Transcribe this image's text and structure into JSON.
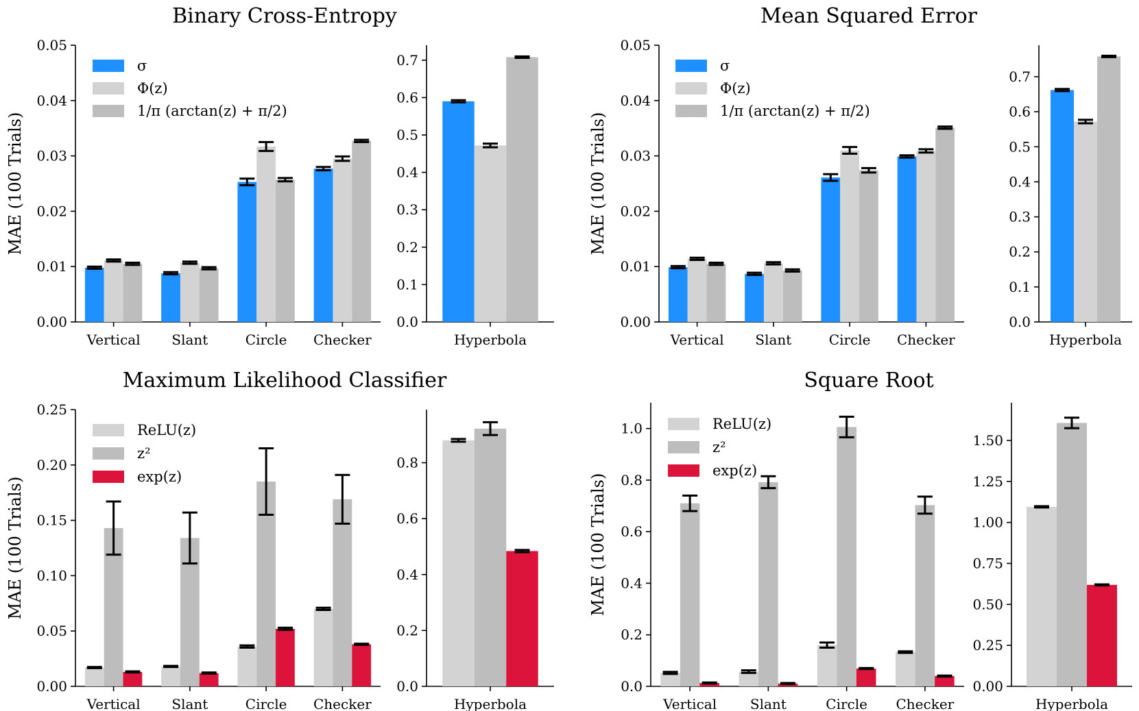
{
  "colors": {
    "sigma": "#1e90ff",
    "phi": "#d3d3d3",
    "arctan": "#bdbdbd",
    "relu": "#d3d3d3",
    "square": "#bdbdbd",
    "exp": "#dc143c"
  },
  "chart_data": [
    {
      "type": "bar",
      "title": "Binary Cross-Entropy",
      "ylabel": "MAE (100 Trials)",
      "left": {
        "categories": [
          "Vertical",
          "Slant",
          "Circle",
          "Checker"
        ],
        "ylim": [
          0,
          0.05
        ],
        "yticks": [
          "0.00",
          "0.01",
          "0.02",
          "0.03",
          "0.04",
          "0.05"
        ],
        "series": [
          {
            "name": "σ",
            "color_key": "sigma",
            "values": [
              0.0098,
              0.0088,
              0.0253,
              0.0277
            ],
            "errors": [
              0.0002,
              0.0002,
              0.0006,
              0.0003
            ]
          },
          {
            "name": "Φ(z)",
            "color_key": "phi",
            "values": [
              0.0111,
              0.0107,
              0.0317,
              0.0295
            ],
            "errors": [
              0.0002,
              0.0002,
              0.0008,
              0.0004
            ]
          },
          {
            "name": "1/π (arctan(z) + π/2)",
            "color_key": "arctan",
            "values": [
              0.0105,
              0.0097,
              0.0257,
              0.0327
            ],
            "errors": [
              0.0002,
              0.0002,
              0.0003,
              0.0002
            ]
          }
        ]
      },
      "right": {
        "categories": [
          "Hyperbola"
        ],
        "ylim": [
          0,
          0.74
        ],
        "yticks": [
          "0.0",
          "0.1",
          "0.2",
          "0.3",
          "0.4",
          "0.5",
          "0.6",
          "0.7"
        ],
        "series": [
          {
            "name": "σ",
            "color_key": "sigma",
            "values": [
              0.59
            ],
            "errors": [
              0.003
            ]
          },
          {
            "name": "Φ(z)",
            "color_key": "phi",
            "values": [
              0.472
            ],
            "errors": [
              0.005
            ]
          },
          {
            "name": "1/π (arctan(z) + π/2)",
            "color_key": "arctan",
            "values": [
              0.708
            ],
            "errors": [
              0.002
            ]
          }
        ]
      },
      "legend": [
        {
          "label": "σ",
          "color_key": "sigma"
        },
        {
          "label": "Φ(z)",
          "color_key": "phi"
        },
        {
          "label": "1/π (arctan(z) + π/2)",
          "color_key": "arctan"
        }
      ],
      "legend_position": "top-left"
    },
    {
      "type": "bar",
      "title": "Mean Squared Error",
      "ylabel": "MAE (100 Trials)",
      "left": {
        "categories": [
          "Vertical",
          "Slant",
          "Circle",
          "Checker"
        ],
        "ylim": [
          0,
          0.05
        ],
        "yticks": [
          "0.00",
          "0.01",
          "0.02",
          "0.03",
          "0.04",
          "0.05"
        ],
        "series": [
          {
            "name": "σ",
            "color_key": "sigma",
            "values": [
              0.0099,
              0.0087,
              0.0261,
              0.0299
            ],
            "errors": [
              0.0002,
              0.0002,
              0.0006,
              0.0002
            ]
          },
          {
            "name": "Φ(z)",
            "color_key": "phi",
            "values": [
              0.0114,
              0.0106,
              0.031,
              0.0309
            ],
            "errors": [
              0.0002,
              0.0002,
              0.0006,
              0.0003
            ]
          },
          {
            "name": "1/π (arctan(z) + π/2)",
            "color_key": "arctan",
            "values": [
              0.0105,
              0.0093,
              0.0274,
              0.0351
            ],
            "errors": [
              0.0002,
              0.0002,
              0.0004,
              0.0002
            ]
          }
        ]
      },
      "right": {
        "categories": [
          "Hyperbola"
        ],
        "ylim": [
          0,
          0.79
        ],
        "yticks": [
          "0.0",
          "0.1",
          "0.2",
          "0.3",
          "0.4",
          "0.5",
          "0.6",
          "0.7"
        ],
        "series": [
          {
            "name": "σ",
            "color_key": "sigma",
            "values": [
              0.662
            ],
            "errors": [
              0.003
            ]
          },
          {
            "name": "Φ(z)",
            "color_key": "phi",
            "values": [
              0.572
            ],
            "errors": [
              0.005
            ]
          },
          {
            "name": "1/π (arctan(z) + π/2)",
            "color_key": "arctan",
            "values": [
              0.758
            ],
            "errors": [
              0.002
            ]
          }
        ]
      },
      "legend": [
        {
          "label": "σ",
          "color_key": "sigma"
        },
        {
          "label": "Φ(z)",
          "color_key": "phi"
        },
        {
          "label": "1/π (arctan(z) + π/2)",
          "color_key": "arctan"
        }
      ],
      "legend_position": "top-left"
    },
    {
      "type": "bar",
      "title": "Maximum Likelihood Classifier",
      "ylabel": "MAE (100 Trials)",
      "left": {
        "categories": [
          "Vertical",
          "Slant",
          "Circle",
          "Checker"
        ],
        "ylim": [
          0,
          0.25
        ],
        "yticks": [
          "0.00",
          "0.05",
          "0.10",
          "0.15",
          "0.20",
          "0.25"
        ],
        "series": [
          {
            "name": "ReLU(z)",
            "color_key": "relu",
            "values": [
              0.017,
              0.018,
              0.036,
              0.07
            ],
            "errors": [
              0.0005,
              0.0005,
              0.001,
              0.001
            ]
          },
          {
            "name": "z²",
            "color_key": "square",
            "values": [
              0.143,
              0.134,
              0.185,
              0.169
            ],
            "errors": [
              0.024,
              0.023,
              0.03,
              0.022
            ]
          },
          {
            "name": "exp(z)",
            "color_key": "exp",
            "values": [
              0.013,
              0.012,
              0.052,
              0.038
            ],
            "errors": [
              0.0005,
              0.0005,
              0.001,
              0.0005
            ]
          }
        ]
      },
      "right": {
        "categories": [
          "Hyperbola"
        ],
        "ylim": [
          0,
          0.99
        ],
        "yticks": [
          "0.0",
          "0.2",
          "0.4",
          "0.6",
          "0.8"
        ],
        "series": [
          {
            "name": "ReLU(z)",
            "color_key": "relu",
            "values": [
              0.88
            ],
            "errors": [
              0.005
            ]
          },
          {
            "name": "z²",
            "color_key": "square",
            "values": [
              0.922
            ],
            "errors": [
              0.023
            ]
          },
          {
            "name": "exp(z)",
            "color_key": "exp",
            "values": [
              0.484
            ],
            "errors": [
              0.004
            ]
          }
        ]
      },
      "legend": [
        {
          "label": "ReLU(z)",
          "color_key": "relu"
        },
        {
          "label": "z²",
          "color_key": "square"
        },
        {
          "label": "exp(z)",
          "color_key": "exp"
        }
      ],
      "legend_position": "top-left"
    },
    {
      "type": "bar",
      "title": "Square Root",
      "ylabel": "MAE (100 Trials)",
      "left": {
        "categories": [
          "Vertical",
          "Slant",
          "Circle",
          "Checker"
        ],
        "ylim": [
          0,
          1.1
        ],
        "yticks": [
          "0.0",
          "0.2",
          "0.4",
          "0.6",
          "0.8",
          "1.0"
        ],
        "series": [
          {
            "name": "ReLU(z)",
            "color_key": "relu",
            "values": [
              0.052,
              0.057,
              0.16,
              0.133
            ],
            "errors": [
              0.004,
              0.005,
              0.01,
              0.003
            ]
          },
          {
            "name": "z²",
            "color_key": "square",
            "values": [
              0.71,
              0.792,
              1.006,
              0.703
            ],
            "errors": [
              0.03,
              0.023,
              0.04,
              0.033
            ]
          },
          {
            "name": "exp(z)",
            "color_key": "exp",
            "values": [
              0.013,
              0.011,
              0.069,
              0.04
            ],
            "errors": [
              0.002,
              0.002,
              0.002,
              0.002
            ]
          }
        ]
      },
      "right": {
        "categories": [
          "Hyperbola"
        ],
        "ylim": [
          0,
          1.73
        ],
        "yticks": [
          "0.00",
          "0.25",
          "0.50",
          "0.75",
          "1.00",
          "1.25",
          "1.50"
        ],
        "series": [
          {
            "name": "ReLU(z)",
            "color_key": "relu",
            "values": [
              1.095
            ],
            "errors": [
              0.004
            ]
          },
          {
            "name": "z²",
            "color_key": "square",
            "values": [
              1.607
            ],
            "errors": [
              0.032
            ]
          },
          {
            "name": "exp(z)",
            "color_key": "exp",
            "values": [
              0.619
            ],
            "errors": [
              0.003
            ]
          }
        ]
      },
      "legend": [
        {
          "label": "ReLU(z)",
          "color_key": "relu"
        },
        {
          "label": "z²",
          "color_key": "square"
        },
        {
          "label": "exp(z)",
          "color_key": "exp"
        }
      ],
      "legend_position": "top-left"
    }
  ]
}
